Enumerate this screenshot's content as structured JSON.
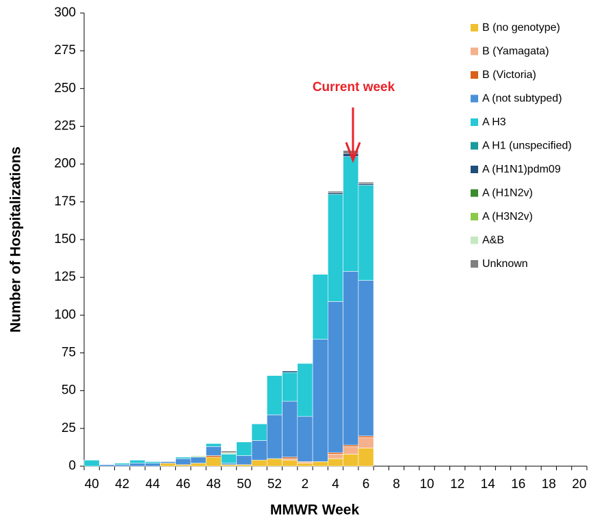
{
  "chart_data": {
    "type": "stacked-bar",
    "xlabel": "MMWR Week",
    "ylabel": "Number of Hospitalizations",
    "annotation": "Current week",
    "categories": [
      "40",
      null,
      "42",
      null,
      "44",
      null,
      "46",
      null,
      "48",
      null,
      "50",
      null,
      "52",
      null,
      "2",
      null,
      "4",
      null,
      "6",
      null,
      "8",
      null,
      "10",
      null,
      "12",
      null,
      "14",
      null,
      "16",
      null,
      "18",
      null,
      "20"
    ],
    "ylim": [
      0,
      300
    ],
    "yticks": [
      0,
      25,
      50,
      75,
      100,
      125,
      150,
      175,
      200,
      225,
      250,
      275,
      300
    ],
    "legend": "right",
    "series": [
      {
        "name": "B (no genotype)",
        "color": "#f0c030",
        "values": [
          0,
          0,
          0,
          0,
          0,
          2,
          1,
          2,
          6,
          1,
          1,
          4,
          5,
          4,
          2,
          3,
          5,
          8,
          12,
          null,
          null,
          null,
          null,
          null,
          null,
          null,
          null,
          null,
          null,
          null,
          null,
          null,
          null
        ]
      },
      {
        "name": "B (Yamagata)",
        "color": "#f4b18c",
        "values": [
          0,
          0,
          0,
          0,
          0,
          0,
          0,
          0,
          0,
          0,
          0,
          0,
          0,
          1,
          1,
          0,
          3,
          5,
          7,
          null,
          null,
          null,
          null,
          null,
          null,
          null,
          null,
          null,
          null,
          null,
          null,
          null,
          null
        ]
      },
      {
        "name": "B (Victoria)",
        "color": "#d95f1a",
        "values": [
          0,
          0,
          0,
          0,
          0,
          0,
          0,
          0,
          1,
          0,
          0,
          0,
          0,
          1,
          0,
          0,
          1,
          1,
          1,
          null,
          null,
          null,
          null,
          null,
          null,
          null,
          null,
          null,
          null,
          null,
          null,
          null,
          null
        ]
      },
      {
        "name": "A (not subtyped)",
        "color": "#4a90d9",
        "values": [
          0,
          1,
          1,
          2,
          2,
          1,
          4,
          4,
          6,
          1,
          6,
          13,
          29,
          37,
          30,
          81,
          100,
          115,
          103,
          null,
          null,
          null,
          null,
          null,
          null,
          null,
          null,
          null,
          null,
          null,
          null,
          null,
          null
        ]
      },
      {
        "name": "A H3",
        "color": "#27c9d4",
        "values": [
          4,
          0,
          1,
          2,
          1,
          0,
          1,
          0,
          2,
          6,
          9,
          11,
          26,
          19,
          35,
          43,
          71,
          76,
          63,
          null,
          null,
          null,
          null,
          null,
          null,
          null,
          null,
          null,
          null,
          null,
          null,
          null,
          null
        ]
      },
      {
        "name": "A H1 (unspecified)",
        "color": "#1a9a9a",
        "values": [
          0,
          0,
          0,
          0,
          0,
          0,
          0,
          0,
          0,
          0,
          0,
          0,
          0,
          0,
          0,
          0,
          0,
          0,
          0,
          null,
          null,
          null,
          null,
          null,
          null,
          null,
          null,
          null,
          null,
          null,
          null,
          null,
          null
        ]
      },
      {
        "name": "A (H1N1)pdm09",
        "color": "#1f4e79",
        "values": [
          0,
          0,
          0,
          0,
          0,
          0,
          0,
          0,
          0,
          0,
          0,
          0,
          0,
          1,
          0,
          0,
          1,
          2,
          1,
          null,
          null,
          null,
          null,
          null,
          null,
          null,
          null,
          null,
          null,
          null,
          null,
          null,
          null
        ]
      },
      {
        "name": "A (H1N2v)",
        "color": "#3a8a2e",
        "values": [
          0,
          0,
          0,
          0,
          0,
          0,
          0,
          0,
          0,
          0,
          0,
          0,
          0,
          0,
          0,
          0,
          0,
          0,
          0,
          null,
          null,
          null,
          null,
          null,
          null,
          null,
          null,
          null,
          null,
          null,
          null,
          null,
          null
        ]
      },
      {
        "name": "A (H3N2v)",
        "color": "#8cc84b",
        "values": [
          0,
          0,
          0,
          0,
          0,
          0,
          0,
          0,
          0,
          0,
          0,
          0,
          0,
          0,
          0,
          0,
          0,
          0,
          0,
          null,
          null,
          null,
          null,
          null,
          null,
          null,
          null,
          null,
          null,
          null,
          null,
          null,
          null
        ]
      },
      {
        "name": "A&B",
        "color": "#c5e8c0",
        "values": [
          0,
          0,
          0,
          0,
          0,
          0,
          0,
          1,
          0,
          1,
          0,
          0,
          0,
          0,
          0,
          0,
          0,
          0,
          0,
          null,
          null,
          null,
          null,
          null,
          null,
          null,
          null,
          null,
          null,
          null,
          null,
          null,
          null
        ]
      },
      {
        "name": "Unknown",
        "color": "#7f7f7f",
        "values": [
          0,
          0,
          0,
          0,
          0,
          0,
          0,
          0,
          0,
          1,
          0,
          0,
          0,
          0,
          0,
          0,
          1,
          2,
          1,
          null,
          null,
          null,
          null,
          null,
          null,
          null,
          null,
          null,
          null,
          null,
          null,
          null,
          null
        ]
      }
    ]
  }
}
